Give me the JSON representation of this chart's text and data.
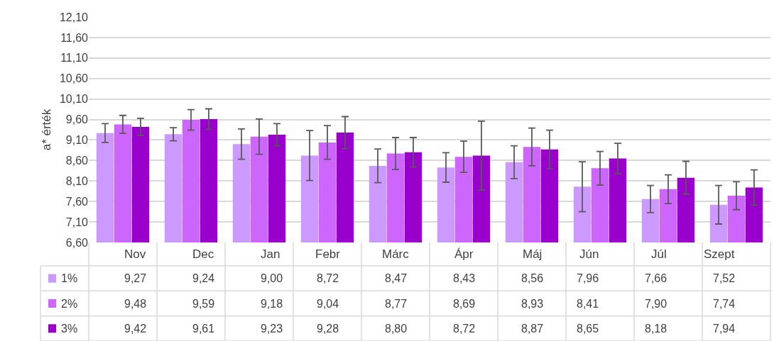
{
  "chart_data": {
    "type": "bar",
    "ylabel": "a* érték",
    "categories": [
      "Nov",
      "Dec",
      "Jan",
      "Febr",
      "Márc",
      "Ápr",
      "Máj",
      "Jún",
      "Júl",
      "Szept"
    ],
    "series": [
      {
        "name": "1%",
        "color": "#cc99ff",
        "values": [
          9.27,
          9.24,
          9.0,
          8.72,
          8.47,
          8.43,
          8.56,
          7.96,
          7.66,
          7.52
        ],
        "value_labels": [
          "9,27",
          "9,24",
          "9,00",
          "8,72",
          "8,47",
          "8,43",
          "8,56",
          "7,96",
          "7,66",
          "7,52"
        ],
        "errors": [
          0.23,
          0.16,
          0.37,
          0.61,
          0.41,
          0.36,
          0.4,
          0.61,
          0.33,
          0.47
        ]
      },
      {
        "name": "2%",
        "color": "#cc66ff",
        "values": [
          9.48,
          9.59,
          9.18,
          9.04,
          8.77,
          8.69,
          8.93,
          8.41,
          7.9,
          7.74
        ],
        "value_labels": [
          "9,48",
          "9,59",
          "9,18",
          "9,04",
          "8,77",
          "8,69",
          "8,93",
          "8,41",
          "7,90",
          "7,74"
        ],
        "errors": [
          0.22,
          0.25,
          0.43,
          0.41,
          0.39,
          0.38,
          0.46,
          0.41,
          0.35,
          0.34
        ]
      },
      {
        "name": "3%",
        "color": "#9900cc",
        "values": [
          9.42,
          9.61,
          9.23,
          9.28,
          8.8,
          8.72,
          8.87,
          8.65,
          8.18,
          7.94
        ],
        "value_labels": [
          "9,42",
          "9,61",
          "9,23",
          "9,28",
          "8,80",
          "8,72",
          "8,87",
          "8,65",
          "8,18",
          "7,94"
        ],
        "errors": [
          0.21,
          0.25,
          0.27,
          0.39,
          0.36,
          0.84,
          0.47,
          0.37,
          0.4,
          0.43
        ]
      }
    ],
    "ylim": [
      6.6,
      12.1
    ],
    "yticks": [
      {
        "value": 6.6,
        "label": "6,60"
      },
      {
        "value": 7.1,
        "label": "7,10"
      },
      {
        "value": 7.6,
        "label": "7,60"
      },
      {
        "value": 8.1,
        "label": "8,10"
      },
      {
        "value": 8.6,
        "label": "8,60"
      },
      {
        "value": 9.1,
        "label": "9,10"
      },
      {
        "value": 9.6,
        "label": "9,60"
      },
      {
        "value": 10.1,
        "label": "10,10"
      },
      {
        "value": 10.6,
        "label": "10,60"
      },
      {
        "value": 11.1,
        "label": "11,10"
      },
      {
        "value": 11.6,
        "label": "11,60"
      },
      {
        "value": 12.1,
        "label": "12,10"
      }
    ],
    "grid": "y",
    "legend": "bottom"
  }
}
